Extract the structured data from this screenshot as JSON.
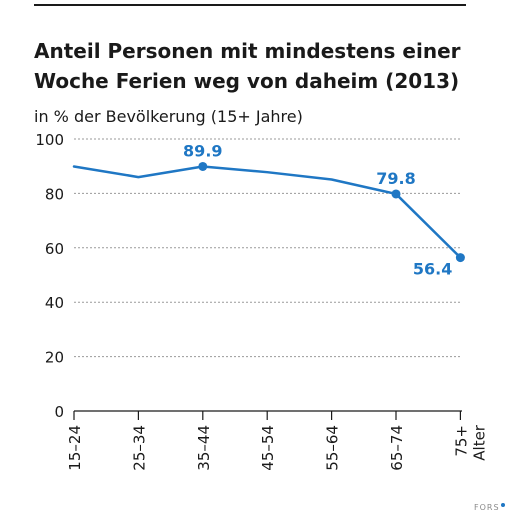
{
  "title_lines": [
    "Anteil Personen mit mindestens einer",
    "Woche Ferien weg von daheim (2013)"
  ],
  "subtitle": "in % der Bevölkerung (15+ Jahre)",
  "source_logo": "FORS",
  "colors": {
    "series": "#1f77c4",
    "text": "#1a1a1a",
    "grid": "#9a9a9a",
    "logo": "#8a8a8a"
  },
  "chart_data": {
    "type": "line",
    "title": "Anteil Personen mit mindestens einer Woche Ferien weg von daheim (2013)",
    "ylabel": "in % der Bevölkerung (15+ Jahre)",
    "xlabel": "Alter",
    "categories": [
      "15–24",
      "25–34",
      "35–44",
      "45–54",
      "55–64",
      "65–74",
      "75+"
    ],
    "series": [
      {
        "values": [
          89.9,
          86.0,
          89.9,
          87.8,
          85.1,
          79.8,
          56.4
        ],
        "markers": [
          false,
          false,
          true,
          false,
          false,
          true,
          true
        ],
        "labels": [
          null,
          null,
          "89.9",
          null,
          null,
          "79.8",
          "56.4"
        ]
      }
    ],
    "ylim": [
      0,
      100
    ],
    "yticks": [
      0,
      20,
      40,
      60,
      80,
      100
    ],
    "grid": true,
    "grid_style": "dashed-horizontal",
    "legend": "none"
  }
}
